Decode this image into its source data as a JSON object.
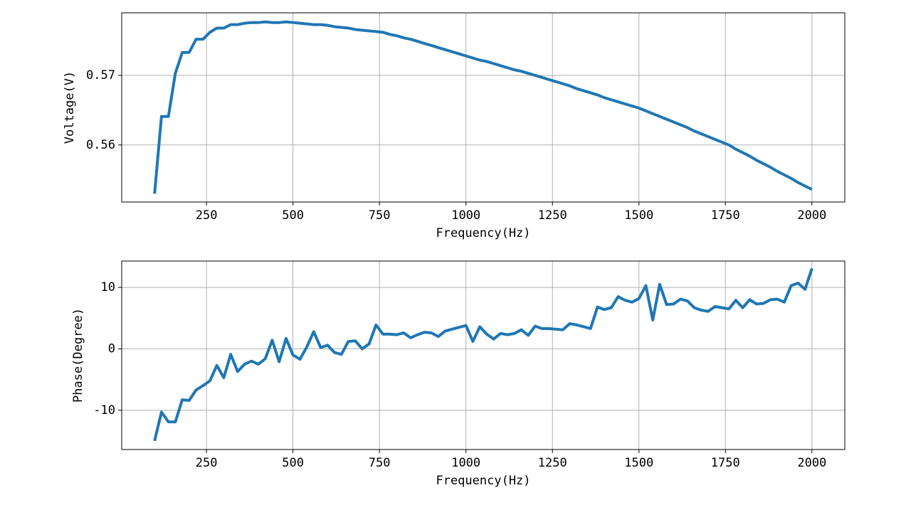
{
  "chart_data": [
    {
      "type": "line",
      "xlabel": "Frequency(Hz)",
      "ylabel": "Voltage(V)",
      "color": "#1f77b4",
      "grid": true,
      "xlim": [
        5,
        2095
      ],
      "xticks": [
        250,
        500,
        750,
        1000,
        1250,
        1500,
        1750,
        2000
      ],
      "ylim": [
        0.5518,
        0.579
      ],
      "yticks": [
        0.56,
        0.57
      ],
      "x": [
        100,
        120,
        140,
        160,
        180,
        200,
        220,
        240,
        260,
        280,
        300,
        320,
        340,
        360,
        380,
        400,
        420,
        440,
        460,
        480,
        500,
        520,
        540,
        560,
        580,
        600,
        620,
        640,
        660,
        680,
        700,
        720,
        740,
        760,
        780,
        800,
        820,
        840,
        860,
        880,
        900,
        920,
        940,
        960,
        980,
        1000,
        1020,
        1040,
        1060,
        1080,
        1100,
        1120,
        1140,
        1160,
        1180,
        1200,
        1220,
        1240,
        1260,
        1280,
        1300,
        1320,
        1340,
        1360,
        1380,
        1400,
        1420,
        1440,
        1460,
        1480,
        1500,
        1520,
        1540,
        1560,
        1580,
        1600,
        1620,
        1640,
        1660,
        1680,
        1700,
        1720,
        1740,
        1760,
        1780,
        1800,
        1820,
        1840,
        1860,
        1880,
        1900,
        1920,
        1940,
        1960,
        1980,
        2000
      ],
      "values": [
        0.553,
        0.5641,
        0.5641,
        0.5703,
        0.5733,
        0.5733,
        0.5752,
        0.5752,
        0.5762,
        0.5768,
        0.5768,
        0.5773,
        0.5773,
        0.5775,
        0.5776,
        0.5776,
        0.5777,
        0.5776,
        0.5776,
        0.5777,
        0.5776,
        0.5775,
        0.5774,
        0.5773,
        0.5773,
        0.5772,
        0.577,
        0.5769,
        0.5768,
        0.5766,
        0.5765,
        0.5764,
        0.5763,
        0.5762,
        0.5759,
        0.5757,
        0.5754,
        0.5752,
        0.5749,
        0.5746,
        0.5743,
        0.574,
        0.5737,
        0.5734,
        0.5731,
        0.5728,
        0.5725,
        0.5722,
        0.572,
        0.5717,
        0.5714,
        0.5711,
        0.5708,
        0.5706,
        0.5703,
        0.57,
        0.5697,
        0.5694,
        0.5691,
        0.5688,
        0.5685,
        0.5681,
        0.5678,
        0.5675,
        0.5672,
        0.5668,
        0.5665,
        0.5662,
        0.5659,
        0.5656,
        0.5653,
        0.5649,
        0.5645,
        0.5641,
        0.5637,
        0.5633,
        0.5629,
        0.5625,
        0.562,
        0.5616,
        0.5612,
        0.5608,
        0.5604,
        0.56,
        0.5594,
        0.5589,
        0.5584,
        0.5578,
        0.5573,
        0.5568,
        0.5562,
        0.5557,
        0.5552,
        0.5546,
        0.5541,
        0.5536
      ]
    },
    {
      "type": "line",
      "xlabel": "Frequency(Hz)",
      "ylabel": "Phase(Degree)",
      "color": "#1f77b4",
      "grid": true,
      "xlim": [
        5,
        2095
      ],
      "xticks": [
        250,
        500,
        750,
        1000,
        1250,
        1500,
        1750,
        2000
      ],
      "ylim": [
        -16.4,
        14.3
      ],
      "yticks": [
        -10,
        0,
        10
      ],
      "x": [
        100,
        120,
        140,
        160,
        180,
        200,
        220,
        240,
        260,
        280,
        300,
        320,
        340,
        360,
        380,
        400,
        420,
        440,
        460,
        480,
        500,
        520,
        540,
        560,
        580,
        600,
        620,
        640,
        660,
        680,
        700,
        720,
        740,
        760,
        780,
        800,
        820,
        840,
        860,
        880,
        900,
        920,
        940,
        960,
        980,
        1000,
        1020,
        1040,
        1060,
        1080,
        1100,
        1120,
        1140,
        1160,
        1180,
        1200,
        1220,
        1240,
        1260,
        1280,
        1300,
        1320,
        1340,
        1360,
        1380,
        1400,
        1420,
        1440,
        1460,
        1480,
        1500,
        1520,
        1540,
        1560,
        1580,
        1600,
        1620,
        1640,
        1660,
        1680,
        1700,
        1720,
        1740,
        1760,
        1780,
        1800,
        1820,
        1840,
        1860,
        1880,
        1900,
        1920,
        1940,
        1960,
        1980,
        2000
      ],
      "values": [
        -15.0,
        -10.3,
        -11.9,
        -11.9,
        -8.3,
        -8.4,
        -6.7,
        -6.0,
        -5.2,
        -2.7,
        -4.7,
        -0.9,
        -3.7,
        -2.5,
        -2.0,
        -2.5,
        -1.6,
        1.4,
        -2.1,
        1.7,
        -1.0,
        -1.7,
        0.3,
        2.8,
        0.2,
        0.6,
        -0.6,
        -0.9,
        1.2,
        1.3,
        0.0,
        0.8,
        3.9,
        2.4,
        2.4,
        2.3,
        2.6,
        1.8,
        2.3,
        2.7,
        2.6,
        2.0,
        2.9,
        3.2,
        3.5,
        3.8,
        1.2,
        3.6,
        2.4,
        1.6,
        2.5,
        2.3,
        2.5,
        3.1,
        2.2,
        3.7,
        3.3,
        3.3,
        3.2,
        3.1,
        4.1,
        3.9,
        3.6,
        3.3,
        6.8,
        6.4,
        6.7,
        8.5,
        7.9,
        7.6,
        8.2,
        10.3,
        4.7,
        10.5,
        7.2,
        7.3,
        8.1,
        7.8,
        6.7,
        6.3,
        6.1,
        6.9,
        6.7,
        6.5,
        7.9,
        6.7,
        8.0,
        7.3,
        7.4,
        8.0,
        8.1,
        7.6,
        10.3,
        10.7,
        9.7,
        13.1
      ]
    }
  ]
}
